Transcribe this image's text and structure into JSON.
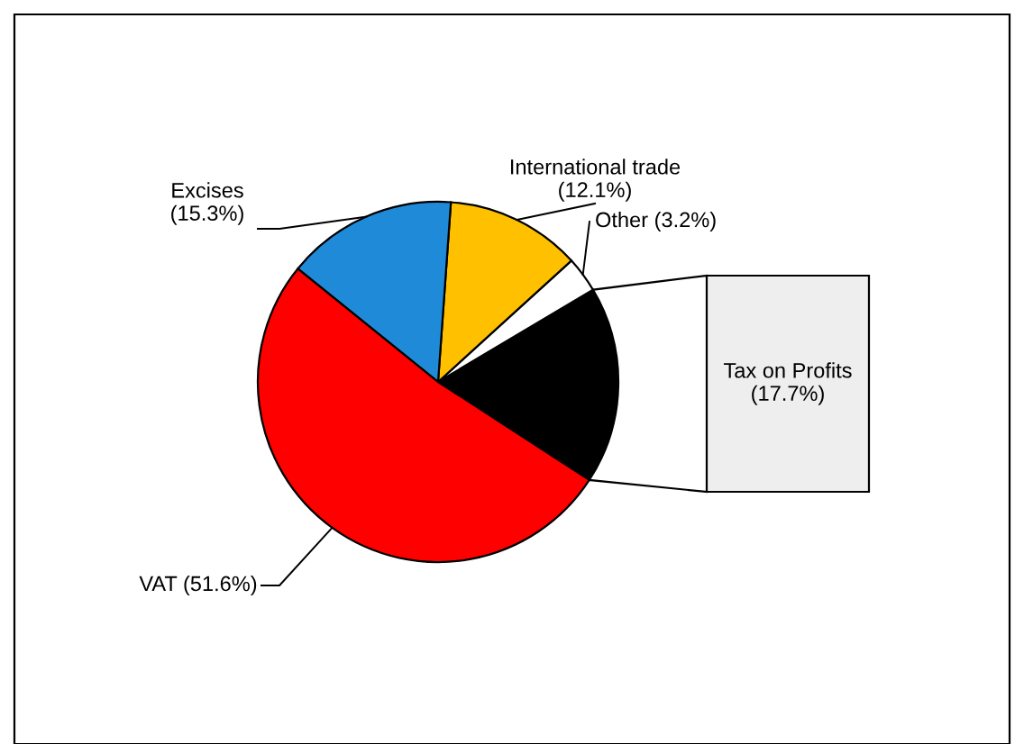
{
  "chart_data": {
    "type": "pie",
    "categories": [
      "Tax on Profits",
      "Other",
      "International trade",
      "Excises",
      "VAT"
    ],
    "values": [
      17.7,
      3.2,
      12.1,
      15.3,
      51.6
    ],
    "colors": [
      "#000000",
      "#ffffff",
      "#ffc000",
      "#1f8ad8",
      "#ff0000"
    ],
    "value_labels": [
      "(17.7%)",
      "(3.2%)",
      "(12.1%)",
      "(15.3%)",
      "(51.6%)"
    ],
    "legend": false
  }
}
